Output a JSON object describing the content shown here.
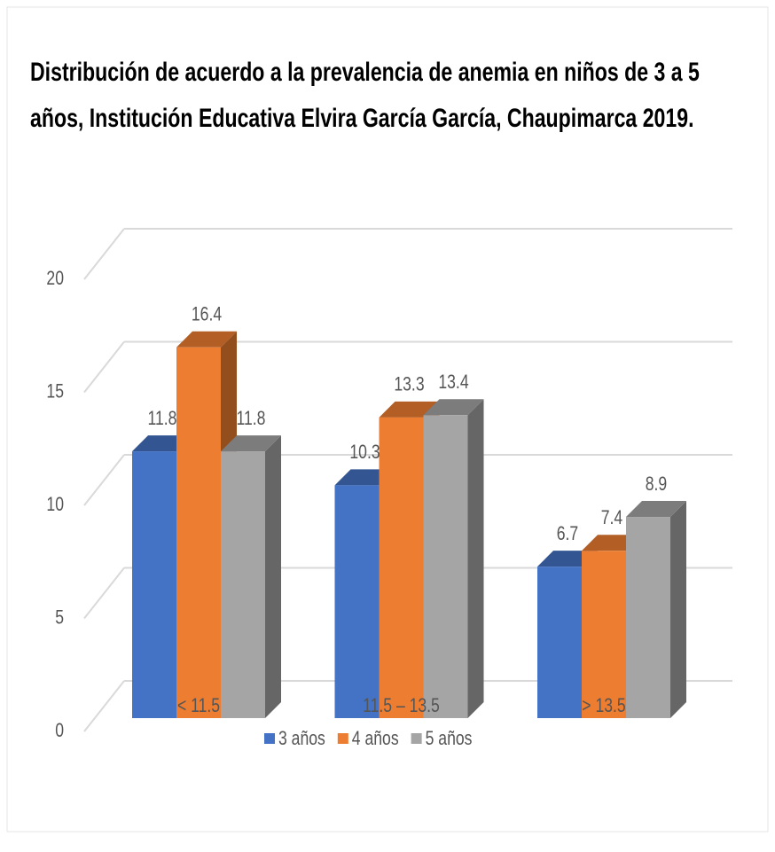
{
  "chart_data": {
    "type": "bar3d",
    "title": "Distribución de acuerdo a la prevalencia de anemia en niños de 3 a 5 años, Institución Educativa Elvira García García, Chaupimarca  2019.",
    "categories": [
      "< 11.5",
      "11.5 – 13.5",
      "> 13.5"
    ],
    "series": [
      {
        "name": "3 años",
        "color": "#4472c4",
        "values": [
          11.8,
          10.3,
          6.7
        ]
      },
      {
        "name": "4 años",
        "color": "#ed7d31",
        "values": [
          16.4,
          13.3,
          7.4
        ]
      },
      {
        "name": "5 años",
        "color": "#a5a5a5",
        "values": [
          11.8,
          13.4,
          8.9
        ]
      }
    ],
    "ylim": [
      0,
      20
    ],
    "yticks": [
      0,
      5,
      10,
      15,
      20
    ],
    "grid": true,
    "legend": "bottom"
  }
}
